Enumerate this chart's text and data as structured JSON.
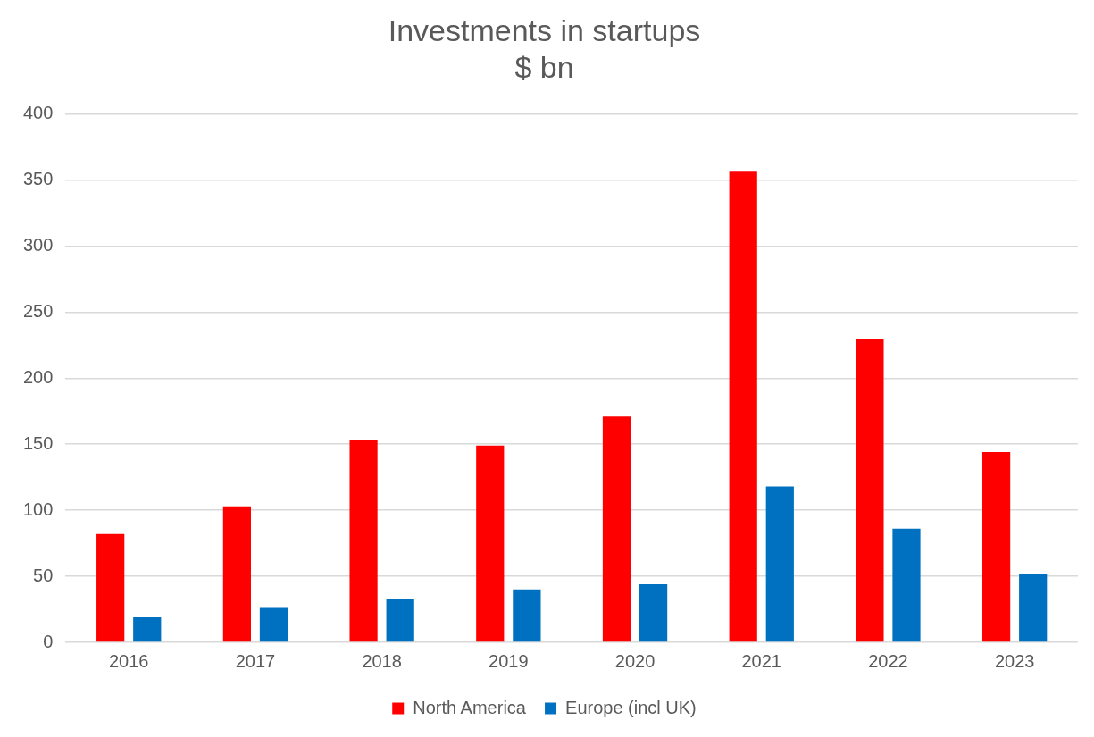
{
  "chart_data": {
    "type": "bar",
    "title": "Investments in startups",
    "subtitle": "$ bn",
    "categories": [
      "2016",
      "2017",
      "2018",
      "2019",
      "2020",
      "2021",
      "2022",
      "2023"
    ],
    "series": [
      {
        "name": "North America",
        "color": "#ff0000",
        "values": [
          82,
          103,
          153,
          149,
          171,
          357,
          230,
          144
        ]
      },
      {
        "name": "Europe (incl UK)",
        "color": "#0070c0",
        "values": [
          19,
          26,
          33,
          40,
          44,
          118,
          86,
          52
        ]
      }
    ],
    "ylim": [
      0,
      400
    ],
    "yticks": [
      0,
      50,
      100,
      150,
      200,
      250,
      300,
      350,
      400
    ],
    "grid": "y",
    "legend": "bottom"
  }
}
